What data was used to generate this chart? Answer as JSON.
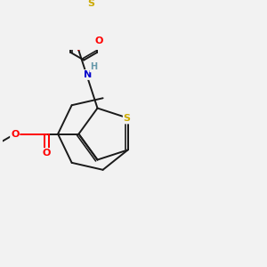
{
  "bg_color": "#f2f2f2",
  "bond_color": "#1a1a1a",
  "bond_width": 1.4,
  "atom_colors": {
    "O": "#ff0000",
    "S": "#ccaa00",
    "N": "#0000cc",
    "H": "#6699aa",
    "C": "#1a1a1a"
  },
  "figsize": [
    3.0,
    3.0
  ],
  "dpi": 100
}
